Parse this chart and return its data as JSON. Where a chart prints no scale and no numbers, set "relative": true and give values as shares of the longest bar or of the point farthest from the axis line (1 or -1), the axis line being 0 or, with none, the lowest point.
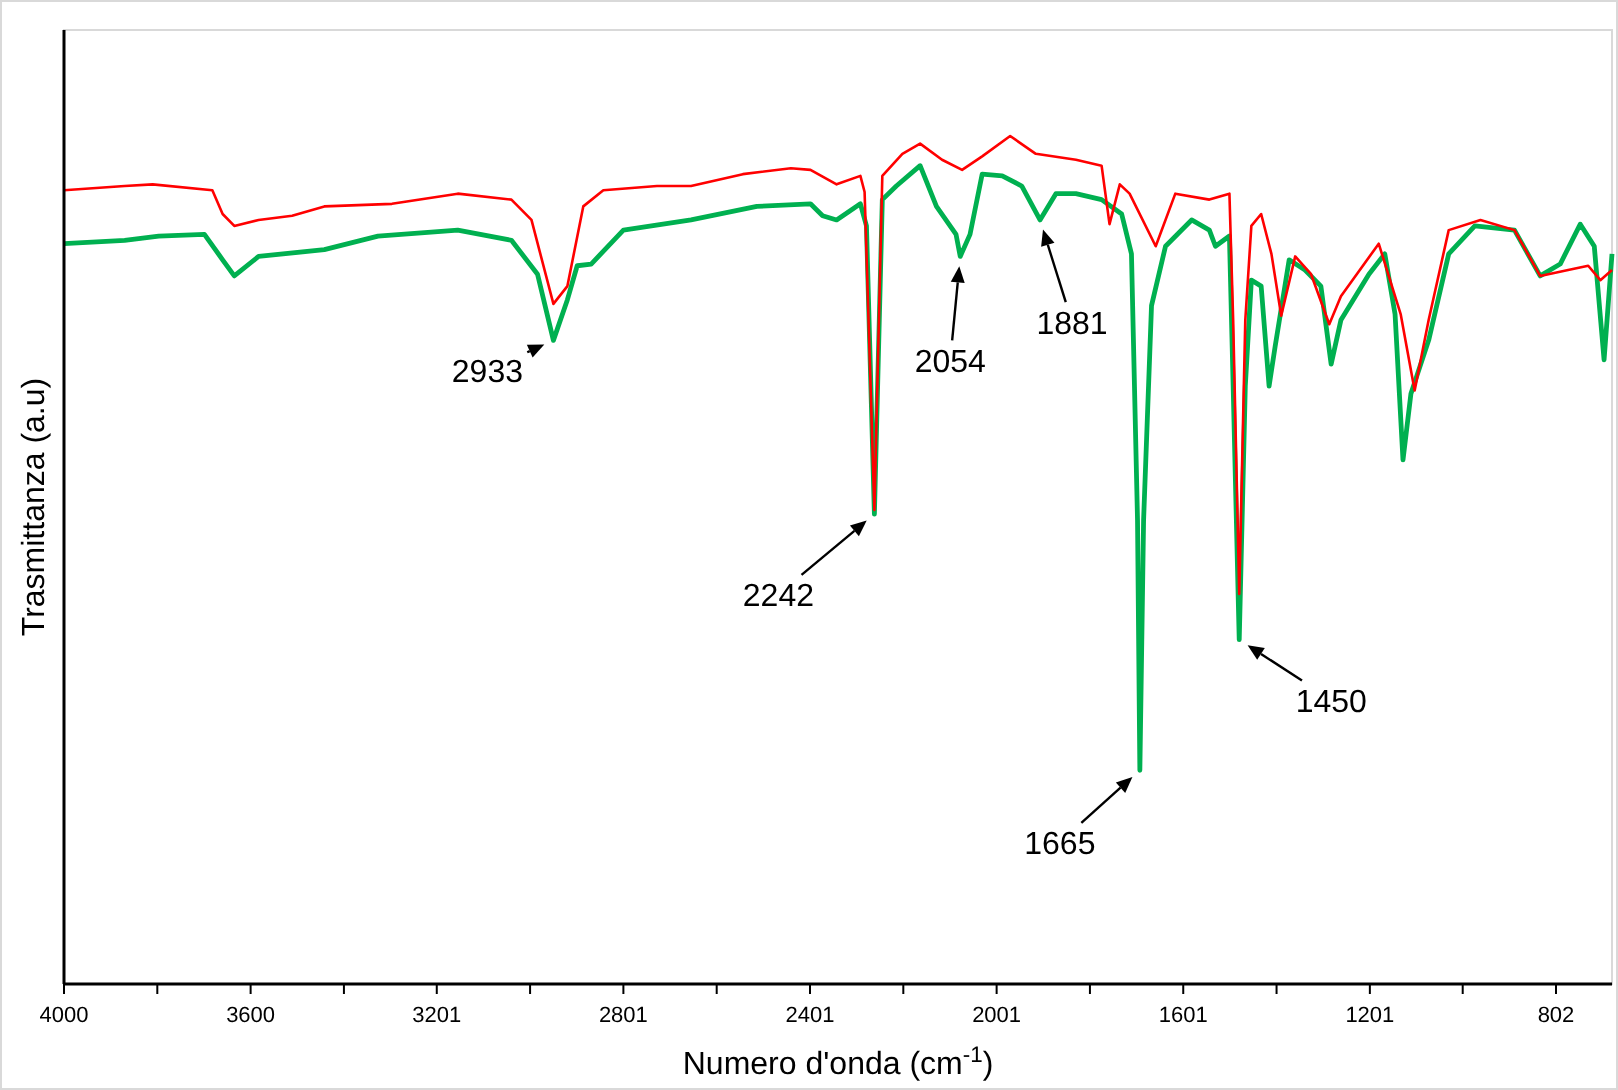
{
  "chart_data": {
    "type": "line",
    "xlabel": "Numero d'onda (cm$^{-1}$)",
    "ylabel": "Trasmittanza (a.u)",
    "relative": true,
    "grid": false,
    "marker": "none",
    "line_style": "solid",
    "xlim": [
      4000,
      682
    ],
    "xticks": [
      4000,
      {
        "value": 3800,
        "label": null
      },
      3600,
      {
        "value": 3400,
        "label": null
      },
      3201,
      {
        "value": 3001,
        "label": null
      },
      2801,
      {
        "value": 2601,
        "label": null
      },
      2401,
      {
        "value": 2201,
        "label": null
      },
      2001,
      {
        "value": 1801,
        "label": null
      },
      1601,
      {
        "value": 1401,
        "label": null
      },
      1201,
      {
        "value": 1002,
        "label": null
      },
      802
    ],
    "series": [
      {
        "color": "#ff0000",
        "x": [
          4000,
          3870,
          3810,
          3682,
          3660,
          3635,
          3583,
          3511,
          3442,
          3297,
          3156,
          3041,
          2998,
          2951,
          2921,
          2887,
          2844,
          2729,
          2656,
          2545,
          2442,
          2400,
          2344,
          2293,
          2284,
          2263,
          2246,
          2203,
          2165,
          2118,
          2075,
          2032,
          1972,
          1917,
          1831,
          1776,
          1759,
          1737,
          1716,
          1660,
          1618,
          1545,
          1502,
          1494,
          1481,
          1468,
          1455,
          1434,
          1412,
          1391,
          1361,
          1327,
          1288,
          1263,
          1182,
          1135,
          1105,
          1075,
          1032,
          964,
          891,
          836,
          776,
          733,
          707,
          682
        ],
        "values": [
          0.936,
          0.941,
          0.943,
          0.936,
          0.908,
          0.894,
          0.901,
          0.906,
          0.917,
          0.92,
          0.932,
          0.925,
          0.901,
          0.802,
          0.823,
          0.917,
          0.936,
          0.941,
          0.941,
          0.955,
          0.962,
          0.96,
          0.943,
          0.953,
          0.934,
          0.559,
          0.953,
          0.979,
          0.991,
          0.972,
          0.96,
          0.976,
          1,
          0.979,
          0.972,
          0.965,
          0.896,
          0.943,
          0.932,
          0.87,
          0.932,
          0.925,
          0.932,
          0.783,
          0.46,
          0.783,
          0.894,
          0.908,
          0.861,
          0.788,
          0.858,
          0.837,
          0.778,
          0.811,
          0.873,
          0.79,
          0.7,
          0.783,
          0.889,
          0.901,
          0.889,
          0.835,
          0.842,
          0.847,
          0.83,
          0.842
        ]
      },
      {
        "color": "#00b050",
        "x": [
          4000,
          3870,
          3797,
          3699,
          3660,
          3635,
          3583,
          3442,
          3327,
          3156,
          3041,
          2985,
          2951,
          2921,
          2900,
          2870,
          2801,
          2656,
          2515,
          2400,
          2374,
          2344,
          2293,
          2280,
          2263,
          2246,
          2216,
          2165,
          2130,
          2088,
          2079,
          2058,
          2032,
          1989,
          1947,
          1908,
          1874,
          1831,
          1776,
          1733,
          1712,
          1699,
          1694,
          1686,
          1669,
          1639,
          1583,
          1545,
          1532,
          1502,
          1494,
          1481,
          1468,
          1455,
          1434,
          1417,
          1404,
          1374,
          1340,
          1306,
          1284,
          1263,
          1203,
          1169,
          1147,
          1130,
          1113,
          1075,
          1032,
          976,
          891,
          836,
          793,
          750,
          720,
          699,
          682
        ],
        "values": [
          0.873,
          0.877,
          0.882,
          0.884,
          0.854,
          0.835,
          0.858,
          0.866,
          0.882,
          0.889,
          0.877,
          0.837,
          0.759,
          0.807,
          0.847,
          0.849,
          0.889,
          0.901,
          0.917,
          0.92,
          0.906,
          0.901,
          0.92,
          0.894,
          0.554,
          0.925,
          0.941,
          0.965,
          0.917,
          0.884,
          0.858,
          0.884,
          0.955,
          0.953,
          0.941,
          0.901,
          0.932,
          0.932,
          0.925,
          0.908,
          0.861,
          0.547,
          0.252,
          0.547,
          0.8,
          0.87,
          0.901,
          0.889,
          0.87,
          0.882,
          0.705,
          0.406,
          0.705,
          0.83,
          0.823,
          0.705,
          0.752,
          0.854,
          0.842,
          0.823,
          0.731,
          0.783,
          0.837,
          0.861,
          0.79,
          0.618,
          0.696,
          0.759,
          0.861,
          0.894,
          0.889,
          0.835,
          0.849,
          0.896,
          0.87,
          0.736,
          0.861
        ]
      }
    ],
    "annotations": [
      {
        "text": "2933",
        "x": 2951,
        "y": 0.759
      },
      {
        "text": "2242",
        "x": 2263,
        "y": 0.554
      },
      {
        "text": "2054",
        "x": 2079,
        "y": 0.858
      },
      {
        "text": "1881",
        "x": 1908,
        "y": 0.901
      },
      {
        "text": "1665",
        "x": 1694,
        "y": 0.252
      },
      {
        "text": "1450",
        "x": 1481,
        "y": 0.406
      }
    ]
  }
}
